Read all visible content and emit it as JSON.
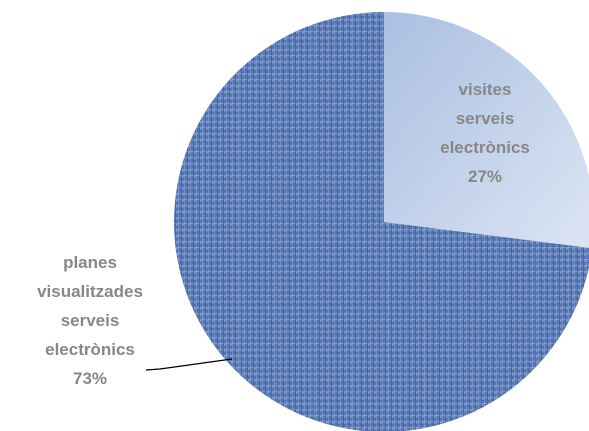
{
  "chart_data": {
    "type": "pie",
    "title": "",
    "legend": "none",
    "slices": [
      {
        "label_lines": [
          "visites",
          "serveis",
          "electrònics"
        ],
        "percent_label": "27%",
        "value": 27,
        "color": "#c5d2e8"
      },
      {
        "label_lines": [
          "planes",
          "visualitzades",
          "serveis",
          "electrònics"
        ],
        "percent_label": "73%",
        "value": 73,
        "color": "#5b7fbf"
      }
    ],
    "label_color": "#878787",
    "texture": "woven-fabric"
  }
}
